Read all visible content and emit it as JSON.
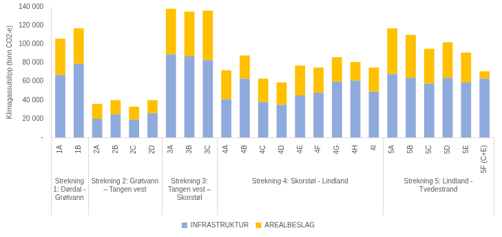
{
  "chart_data": {
    "type": "bar",
    "stacked": true,
    "grid": false,
    "legend": "bottom",
    "ylabel": "Klimagassutslipp (tonn CO2-e)",
    "categories": [
      "1A",
      "1B",
      "2A",
      "2B",
      "2C",
      "2D",
      "3A",
      "3B",
      "3C",
      "4A",
      "4B",
      "4C",
      "4D",
      "4E",
      "4F",
      "4G",
      "4H",
      "4I",
      "5A",
      "5B",
      "5C",
      "5D",
      "5E",
      "5F (C+E)"
    ],
    "groups": [
      {
        "label": "Strekning 1: Dørdal - Grøtvann",
        "categories": [
          "1A",
          "1B"
        ]
      },
      {
        "label": "Strekning 2: Grøtvann – Tangen vest",
        "categories": [
          "2A",
          "2B",
          "2C",
          "2D"
        ]
      },
      {
        "label": "Strekning 3: Tangen vest – Skorstøl",
        "categories": [
          "3A",
          "3B",
          "3C"
        ]
      },
      {
        "label": "Strekning 4: Skorstøl - Lindland",
        "categories": [
          "4A",
          "4B",
          "4C",
          "4D",
          "4E",
          "4F",
          "4G",
          "4H",
          "4I"
        ]
      },
      {
        "label": "Strekning 5: Lindland - Tvedestrand",
        "categories": [
          "5A",
          "5B",
          "5C",
          "5D",
          "5E",
          "5F (C+E)"
        ]
      }
    ],
    "series": [
      {
        "name": "INFRASTRUKTUR",
        "color": "#8faadc",
        "values": [
          67000,
          79000,
          20000,
          25000,
          19000,
          26000,
          89000,
          87000,
          83000,
          41000,
          63000,
          38000,
          35000,
          45000,
          48000,
          60000,
          61000,
          49000,
          68000,
          64000,
          58000,
          64000,
          59000,
          63000
        ]
      },
      {
        "name": "AREALBESLAG",
        "color": "#ffc000",
        "values": [
          39000,
          38000,
          16000,
          15000,
          14000,
          14000,
          49000,
          48000,
          53000,
          31000,
          25000,
          25000,
          24000,
          32000,
          27000,
          26000,
          20000,
          26000,
          49000,
          46000,
          37000,
          38000,
          32000,
          8000
        ]
      }
    ],
    "ylim": [
      0,
      140000
    ],
    "yticks": [
      {
        "value": 0,
        "label": "-"
      },
      {
        "value": 20000,
        "label": "20 000"
      },
      {
        "value": 40000,
        "label": "40 000"
      },
      {
        "value": 60000,
        "label": "60 000"
      },
      {
        "value": 80000,
        "label": "80 000"
      },
      {
        "value": 100000,
        "label": "100 000"
      },
      {
        "value": 120000,
        "label": "120 000"
      },
      {
        "value": 140000,
        "label": "140 000"
      }
    ]
  }
}
